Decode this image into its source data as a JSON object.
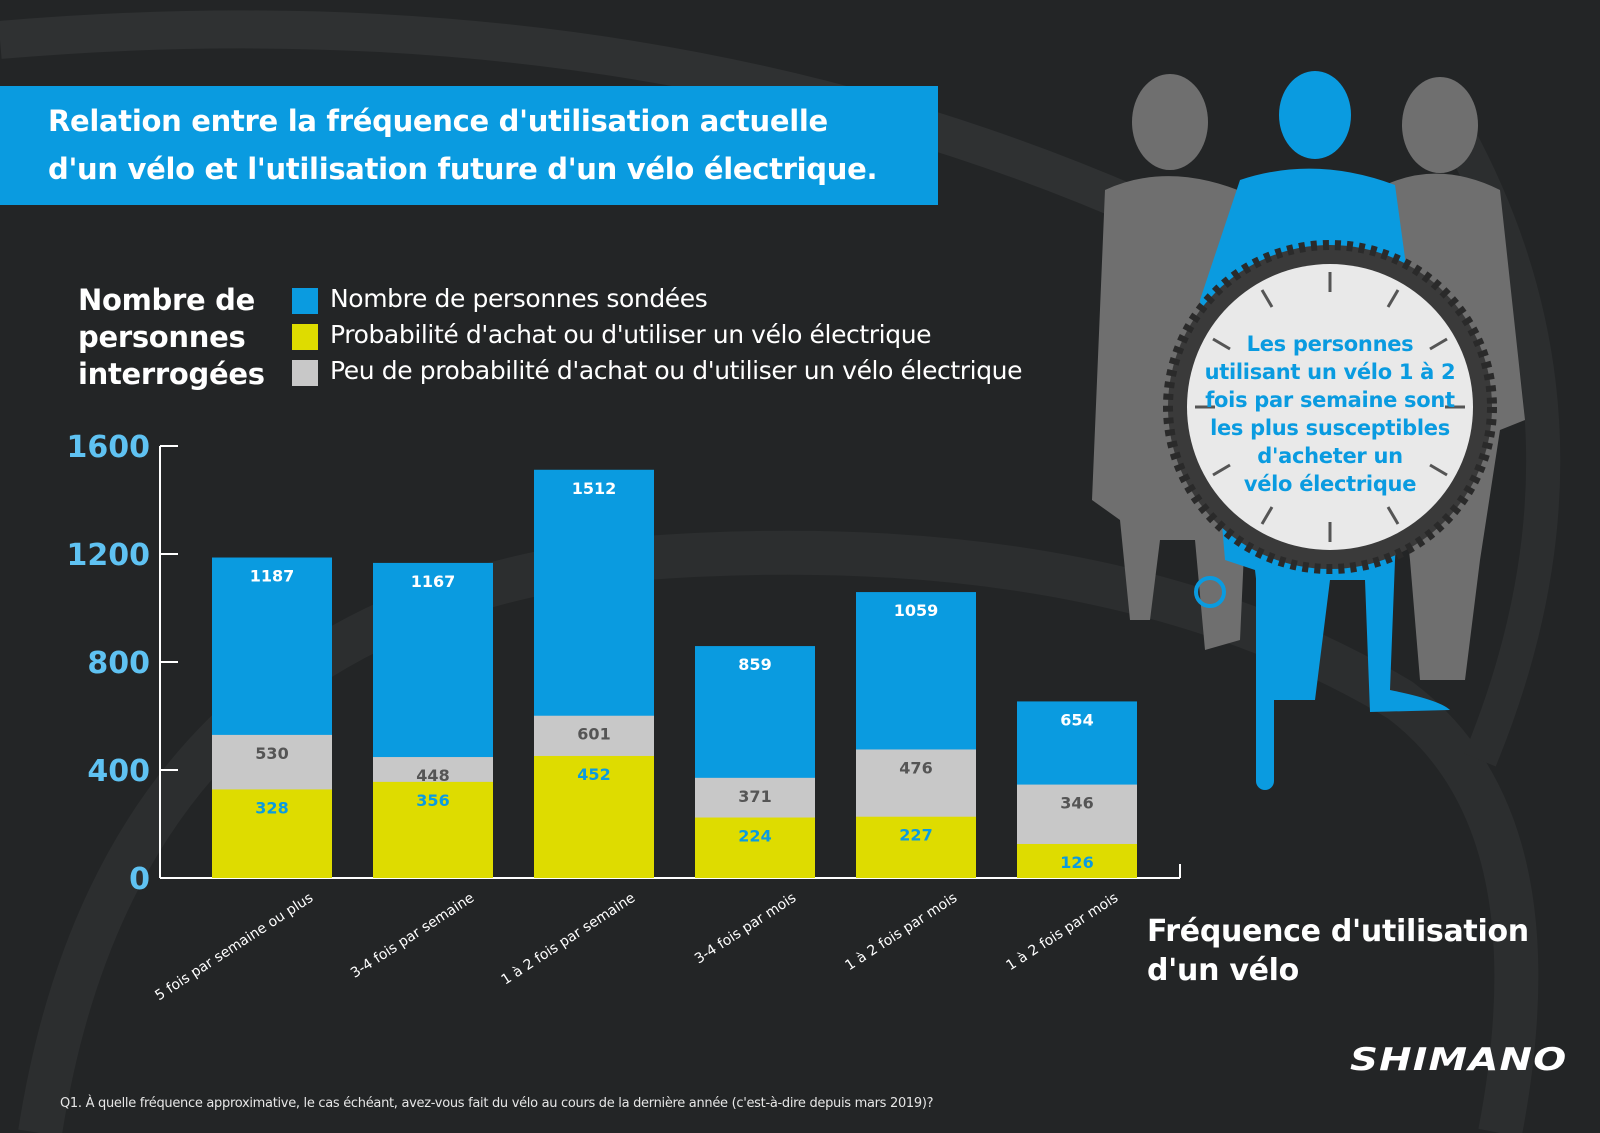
{
  "title": {
    "line1": "Relation entre la fréquence d'utilisation actuelle",
    "line2": "d'un vélo et l'utilisation future d'un vélo électrique."
  },
  "y_title": [
    "Nombre de",
    "personnes",
    "interrogées"
  ],
  "x_title": [
    "Fréquence d'utilisation",
    "d'un vélo"
  ],
  "callout": [
    "Les personnes",
    "utilisant un vélo 1 à 2",
    "fois par semaine sont",
    "les plus susceptibles",
    "d'acheter un",
    "vélo électrique"
  ],
  "brand": "SHIMANO",
  "footnote": "Q1. À quelle fréquence approximative, le cas échéant, avez-vous fait du vélo au cours de la dernière année (c'est-à-dire depuis mars 2019)?",
  "colors": {
    "blue": "#0a9be0",
    "yellow": "#dedc00",
    "grey": "#c8c8c8",
    "background": "#222425"
  },
  "chart_data": {
    "type": "bar",
    "layout": "overlapping",
    "categories": [
      "5 fois par semaine ou plus",
      "3-4 fois par semaine",
      "1 à 2 fois par semaine",
      "3-4 fois par mois",
      "1 à 2 fois par mois",
      "1 à 2 fois par mois"
    ],
    "series": [
      {
        "name": "Nombre de personnes sondées",
        "color": "#0a9be0",
        "values": [
          1187,
          1167,
          1512,
          859,
          1059,
          654
        ]
      },
      {
        "name": "Peu de probabilité d'achat ou d'utiliser un vélo électrique",
        "color": "#c8c8c8",
        "values": [
          530,
          448,
          601,
          371,
          476,
          346
        ]
      },
      {
        "name": "Probabilité d'achat ou d'utiliser un vélo électrique",
        "color": "#dedc00",
        "values": [
          328,
          356,
          452,
          224,
          227,
          126
        ]
      }
    ],
    "legend": [
      {
        "label": "Nombre de personnes sondées",
        "color": "#0a9be0"
      },
      {
        "label": "Probabilité d'achat ou d'utiliser un vélo électrique",
        "color": "#dedc00"
      },
      {
        "label": "Peu de probabilité d'achat ou d'utiliser un vélo électrique",
        "color": "#c8c8c8"
      }
    ],
    "yticks": [
      0,
      400,
      800,
      1200,
      1600
    ],
    "ylim": [
      0,
      1600
    ],
    "grid": false,
    "legend_position": "top"
  }
}
